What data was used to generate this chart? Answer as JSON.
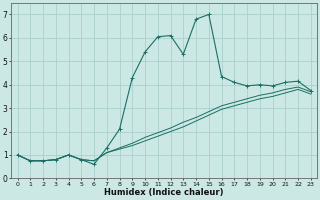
{
  "xlabel": "Humidex (Indice chaleur)",
  "xlim": [
    -0.5,
    23.5
  ],
  "ylim": [
    0,
    7.5
  ],
  "xticks": [
    0,
    1,
    2,
    3,
    4,
    5,
    6,
    7,
    8,
    9,
    10,
    11,
    12,
    13,
    14,
    15,
    16,
    17,
    18,
    19,
    20,
    21,
    22,
    23
  ],
  "yticks": [
    0,
    1,
    2,
    3,
    4,
    5,
    6,
    7
  ],
  "background_color": "#cce8e4",
  "grid_color": "#aacfca",
  "line_color": "#1a6e65",
  "series1": [
    [
      0,
      1.0
    ],
    [
      1,
      0.75
    ],
    [
      2,
      0.75
    ],
    [
      3,
      0.8
    ],
    [
      4,
      1.0
    ],
    [
      5,
      0.8
    ],
    [
      6,
      0.6
    ],
    [
      7,
      1.3
    ],
    [
      8,
      2.1
    ],
    [
      9,
      4.3
    ],
    [
      10,
      5.4
    ],
    [
      11,
      6.05
    ],
    [
      12,
      6.1
    ],
    [
      13,
      5.3
    ],
    [
      14,
      6.8
    ],
    [
      15,
      7.0
    ],
    [
      16,
      4.35
    ],
    [
      17,
      4.1
    ],
    [
      18,
      3.95
    ],
    [
      19,
      4.0
    ],
    [
      20,
      3.95
    ],
    [
      21,
      4.1
    ],
    [
      22,
      4.15
    ],
    [
      23,
      3.75
    ]
  ],
  "series2": [
    [
      0,
      1.0
    ],
    [
      1,
      0.75
    ],
    [
      2,
      0.75
    ],
    [
      3,
      0.8
    ],
    [
      4,
      1.0
    ],
    [
      5,
      0.8
    ],
    [
      6,
      0.75
    ],
    [
      7,
      1.1
    ],
    [
      8,
      1.25
    ],
    [
      9,
      1.4
    ],
    [
      10,
      1.6
    ],
    [
      11,
      1.8
    ],
    [
      12,
      2.0
    ],
    [
      13,
      2.2
    ],
    [
      14,
      2.45
    ],
    [
      15,
      2.7
    ],
    [
      16,
      2.95
    ],
    [
      17,
      3.1
    ],
    [
      18,
      3.25
    ],
    [
      19,
      3.4
    ],
    [
      20,
      3.5
    ],
    [
      21,
      3.65
    ],
    [
      22,
      3.8
    ],
    [
      23,
      3.6
    ]
  ],
  "series3": [
    [
      0,
      1.0
    ],
    [
      1,
      0.75
    ],
    [
      2,
      0.75
    ],
    [
      3,
      0.8
    ],
    [
      4,
      1.0
    ],
    [
      5,
      0.8
    ],
    [
      6,
      0.75
    ],
    [
      7,
      1.1
    ],
    [
      8,
      1.3
    ],
    [
      9,
      1.5
    ],
    [
      10,
      1.75
    ],
    [
      11,
      1.95
    ],
    [
      12,
      2.15
    ],
    [
      13,
      2.4
    ],
    [
      14,
      2.6
    ],
    [
      15,
      2.85
    ],
    [
      16,
      3.1
    ],
    [
      17,
      3.25
    ],
    [
      18,
      3.4
    ],
    [
      19,
      3.55
    ],
    [
      20,
      3.65
    ],
    [
      21,
      3.8
    ],
    [
      22,
      3.9
    ],
    [
      23,
      3.7
    ]
  ]
}
